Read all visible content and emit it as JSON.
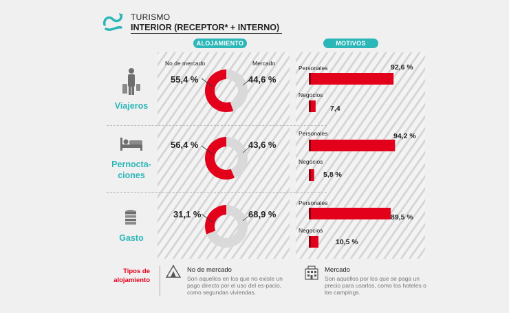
{
  "header": {
    "title_line1": "TURISMO",
    "title_line2": "INTERIOR (RECEPTOR* + INTERNO)"
  },
  "sections": {
    "alojamiento": "ALOJAMIENTO",
    "motivos": "MOTIVOS"
  },
  "donut_labels": {
    "no_mercado": "No de mercado",
    "mercado": "Mercado"
  },
  "colors": {
    "accent_teal": "#2bb6b8",
    "red": "#e3001b",
    "grey": "#d9d9d9"
  },
  "rows": [
    {
      "label": "Viajeros",
      "icon": "traveler-icon"
    },
    {
      "label": "Pernocta-\nciones",
      "icon": "bed-icon"
    },
    {
      "label": "Gasto",
      "icon": "coins-icon"
    }
  ],
  "chart_data": [
    {
      "type": "pie",
      "title": "ALOJAMIENTO",
      "categories": [
        "Viajeros",
        "Pernocta-ciones",
        "Gasto"
      ],
      "series": [
        {
          "name": "No de mercado",
          "values": [
            55.4,
            56.4,
            31.1
          ],
          "labels": [
            "55,4 %",
            "56,4 %",
            "31,1 %"
          ]
        },
        {
          "name": "Mercado",
          "values": [
            44.6,
            43.6,
            68.9
          ],
          "labels": [
            "44,6 %",
            "43,6 %",
            "68,9 %"
          ]
        }
      ]
    },
    {
      "type": "bar",
      "title": "MOTIVOS",
      "categories": [
        "Viajeros",
        "Pernocta-ciones",
        "Gasto"
      ],
      "series": [
        {
          "name": "Personales",
          "values": [
            92.6,
            94.2,
            89.5
          ],
          "labels": [
            "92,6 %",
            "94,2 %",
            "89,5 %"
          ]
        },
        {
          "name": "Negocios",
          "values": [
            7.4,
            5.8,
            10.5
          ],
          "labels": [
            "7,4",
            "5,8 %",
            "10,5 %"
          ]
        }
      ],
      "xlim": [
        0,
        100
      ]
    }
  ],
  "legend": {
    "title": "Tipos de\nalojamiento",
    "items": [
      {
        "heading": "No de mercado",
        "icon": "tent-icon",
        "desc": "Son aquellos en los que no existe un pago directo por el uso del es-pacio, como segundas viviendas."
      },
      {
        "heading": "Mercado",
        "icon": "hotel-icon",
        "desc": "Son aquellos por los que se paga un precio para usarlos, como los hoteles o los campings."
      }
    ]
  }
}
